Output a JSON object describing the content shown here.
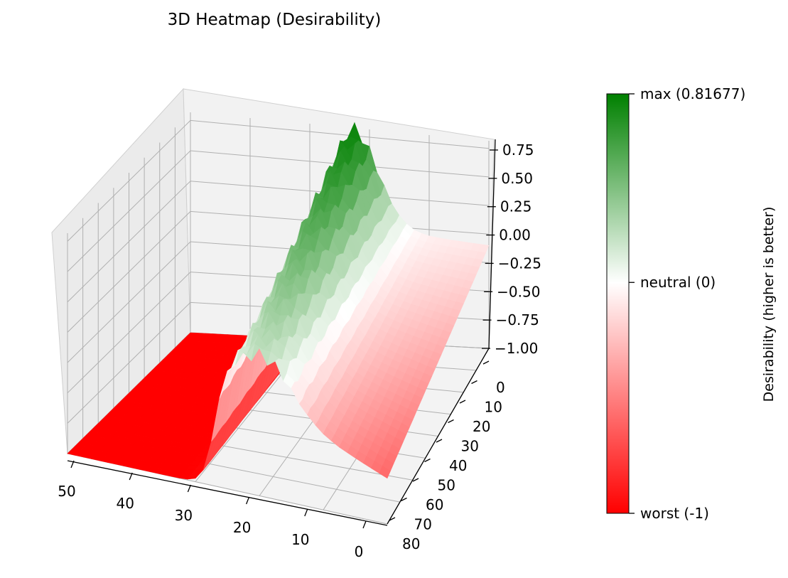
{
  "chart_data": {
    "type": "surface3d",
    "title": "3D Heatmap (Desirability)",
    "axes": {
      "x": {
        "ticks": [
          50,
          40,
          30,
          20,
          10,
          0
        ],
        "range": [
          0,
          50
        ]
      },
      "y": {
        "ticks": [
          0,
          10,
          20,
          30,
          40,
          50,
          60,
          70,
          80
        ],
        "range": [
          0,
          80
        ]
      },
      "z": {
        "ticks": [
          "0.75",
          "0.50",
          "0.25",
          "0.00",
          "−0.25",
          "−0.50",
          "−0.75",
          "−1.00"
        ],
        "range": [
          -1.0,
          0.81677
        ]
      }
    },
    "surface": {
      "description_values": {
        "plateau_value": -1.0,
        "plateau_x_range": [
          27,
          50
        ],
        "peak_value": 0.81677,
        "far_edge_value": -0.1,
        "near_edge_value": -0.6
      }
    },
    "colorbar": {
      "label": "Desirability (higher is better)",
      "ticks": [
        {
          "value": 0.81677,
          "label": "max (0.81677)"
        },
        {
          "value": 0,
          "label": "neutral (0)"
        },
        {
          "value": -1,
          "label": "worst (-1)"
        }
      ],
      "colors": {
        "worst": "#ff0000",
        "neutral": "#ffffff",
        "best": "#008000"
      }
    }
  },
  "colors": {
    "pane": "#f2f2f2",
    "pane_side": "#ebebeb",
    "grid": "#b0b0b0"
  }
}
